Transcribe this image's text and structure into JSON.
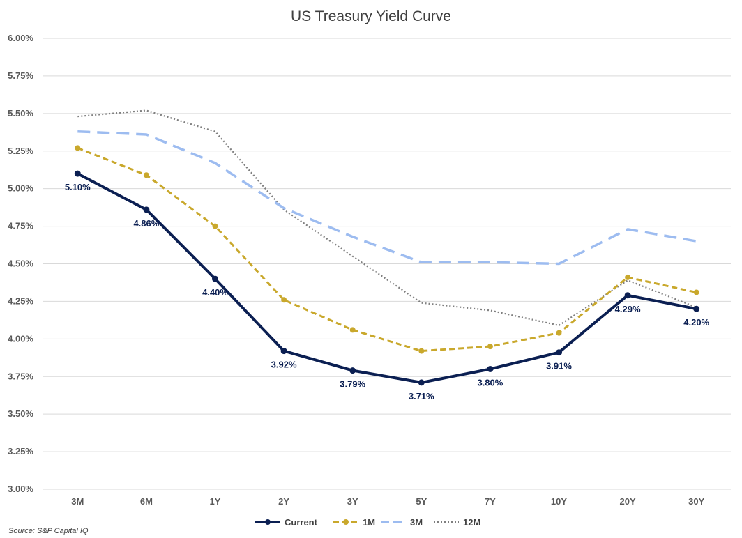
{
  "chart_data": {
    "type": "line",
    "title": "US Treasury Yield Curve",
    "categories": [
      "3M",
      "6M",
      "1Y",
      "2Y",
      "3Y",
      "5Y",
      "7Y",
      "10Y",
      "20Y",
      "30Y"
    ],
    "ylim": [
      3.0,
      6.0
    ],
    "y_ticks": [
      "3.00%",
      "3.25%",
      "3.50%",
      "3.75%",
      "4.00%",
      "4.25%",
      "4.50%",
      "4.75%",
      "5.00%",
      "5.25%",
      "5.50%",
      "5.75%",
      "6.00%"
    ],
    "grid": true,
    "legend_position": "bottom",
    "series": [
      {
        "name": "Current",
        "values": [
          5.1,
          4.86,
          4.4,
          3.92,
          3.79,
          3.71,
          3.8,
          3.91,
          4.29,
          4.2
        ],
        "color": "#0b1f52",
        "style": "solid",
        "markers": true,
        "labels": [
          "5.10%",
          "4.86%",
          "4.40%",
          "3.92%",
          "3.79%",
          "3.71%",
          "3.80%",
          "3.91%",
          "4.29%",
          "4.20%"
        ]
      },
      {
        "name": "1M",
        "values": [
          5.27,
          5.09,
          4.75,
          4.26,
          4.06,
          3.92,
          3.95,
          4.04,
          4.41,
          4.31
        ],
        "color": "#c9a82c",
        "style": "dashed",
        "markers": true
      },
      {
        "name": "3M",
        "values": [
          5.38,
          5.36,
          5.17,
          4.87,
          4.68,
          4.51,
          4.51,
          4.5,
          4.73,
          4.65
        ],
        "color": "#9dbcf0",
        "style": "longdash",
        "markers": false
      },
      {
        "name": "12M",
        "values": [
          5.48,
          5.52,
          5.38,
          4.86,
          4.55,
          4.24,
          4.19,
          4.09,
          4.39,
          4.21
        ],
        "color": "#7f7f7f",
        "style": "dotted",
        "markers": false
      }
    ]
  },
  "source": "Source: S&P Capital IQ"
}
